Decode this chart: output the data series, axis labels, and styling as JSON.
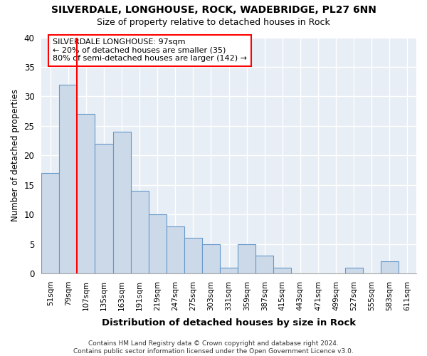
{
  "title1": "SILVERDALE, LONGHOUSE, ROCK, WADEBRIDGE, PL27 6NN",
  "title2": "Size of property relative to detached houses in Rock",
  "xlabel": "Distribution of detached houses by size in Rock",
  "ylabel": "Number of detached properties",
  "bar_labels": [
    "51sqm",
    "79sqm",
    "107sqm",
    "135sqm",
    "163sqm",
    "191sqm",
    "219sqm",
    "247sqm",
    "275sqm",
    "303sqm",
    "331sqm",
    "359sqm",
    "387sqm",
    "415sqm",
    "443sqm",
    "471sqm",
    "499sqm",
    "527sqm",
    "555sqm",
    "583sqm",
    "611sqm"
  ],
  "bar_values": [
    17,
    32,
    27,
    22,
    24,
    14,
    10,
    8,
    6,
    5,
    1,
    5,
    3,
    1,
    0,
    0,
    0,
    1,
    0,
    2,
    0
  ],
  "bar_color": "#ccd9e8",
  "bar_edge_color": "#6699cc",
  "ylim": [
    0,
    40
  ],
  "yticks": [
    0,
    5,
    10,
    15,
    20,
    25,
    30,
    35,
    40
  ],
  "background_color": "#e8eef5",
  "grid_color": "#ffffff",
  "red_line_x": 2.0,
  "annotation_line1": "SILVERDALE LONGHOUSE: 97sqm",
  "annotation_line2": "← 20% of detached houses are smaller (35)",
  "annotation_line3": "80% of semi-detached houses are larger (142) →",
  "footer": "Contains HM Land Registry data © Crown copyright and database right 2024.\nContains public sector information licensed under the Open Government Licence v3.0."
}
